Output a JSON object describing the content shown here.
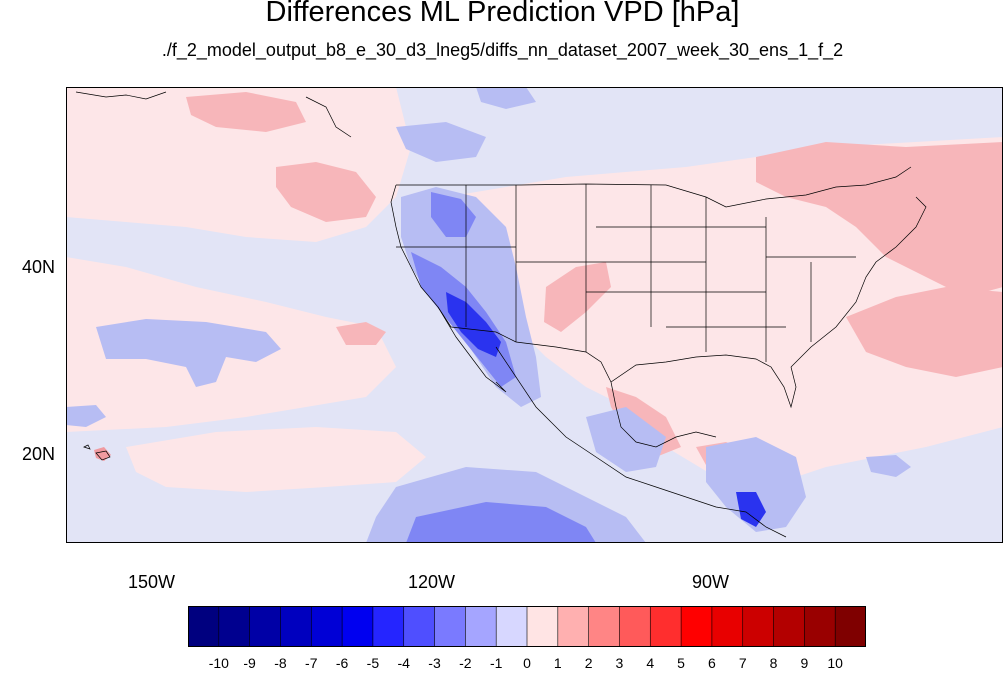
{
  "title": "Differences ML Prediction VPD [hPa]",
  "subtitle": "./f_2_model_output_b8_e_30_d3_lneg5/diffs_nn_dataset_2007_week_30_ens_1_f_2",
  "axes": {
    "lat_labels": [
      "40N",
      "20N"
    ],
    "lon_labels": [
      "150W",
      "120W",
      "90W"
    ]
  },
  "colorbar": {
    "colors": [
      "#00007f",
      "#00008f",
      "#0000a6",
      "#0000bf",
      "#0000d6",
      "#0000f0",
      "#2525ff",
      "#4f4fff",
      "#7a7aff",
      "#a5a5ff",
      "#d7d7ff",
      "#ffe4e4",
      "#ffb0b0",
      "#ff8585",
      "#ff5a5a",
      "#ff2e2e",
      "#ff0000",
      "#e80000",
      "#cc0000",
      "#b30000",
      "#990000",
      "#7f0000"
    ],
    "tick_labels": [
      "-10",
      "-9",
      "-8",
      "-7",
      "-6",
      "-5",
      "-4",
      "-3",
      "-2",
      "-1",
      "0",
      "1",
      "2",
      "3",
      "4",
      "5",
      "6",
      "7",
      "8",
      "9",
      "10"
    ]
  },
  "colors": {
    "ocean_base": "#e2e4f6",
    "light_pink": "#fde6e8",
    "pink": "#f7b6ba",
    "blue_light": "#b7bdf3",
    "blue_mid": "#7f86f4",
    "blue_dark": "#2a33ef",
    "border": "#000000"
  }
}
